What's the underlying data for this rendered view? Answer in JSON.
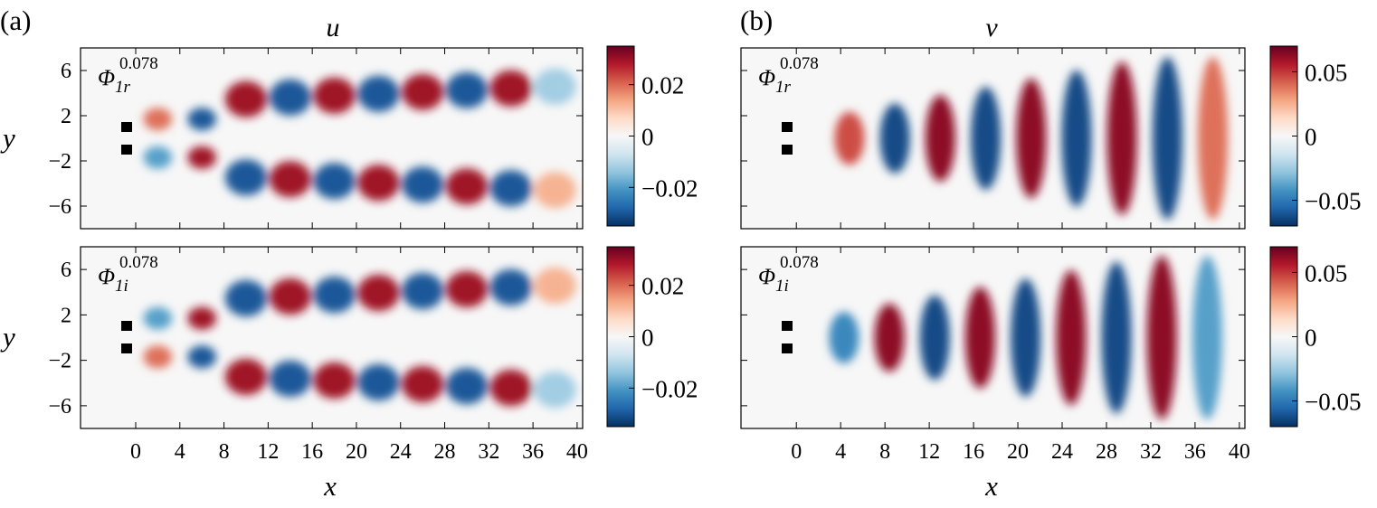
{
  "chart_data": {
    "type": "heatmap",
    "panels": [
      {
        "label": "(a)",
        "title": "u",
        "colorbar": {
          "min": -0.035,
          "max": 0.035,
          "ticks": [
            0.02,
            0,
            -0.02
          ],
          "tick_labels": [
            "0.02",
            "0",
            "−0.02"
          ]
        },
        "rows": [
          {
            "mode_label": "Φ",
            "mode_sub": "1r",
            "mode_sup": "0.078"
          },
          {
            "mode_label": "Φ",
            "mode_sub": "1i",
            "mode_sup": "0.078"
          }
        ]
      },
      {
        "label": "(b)",
        "title": "v",
        "colorbar": {
          "min": -0.07,
          "max": 0.07,
          "ticks": [
            0.05,
            0,
            -0.05
          ],
          "tick_labels": [
            "0.05",
            "0",
            "−0.05"
          ]
        },
        "rows": [
          {
            "mode_label": "Φ",
            "mode_sub": "1r",
            "mode_sup": "0.078"
          },
          {
            "mode_label": "Φ",
            "mode_sub": "1i",
            "mode_sup": "0.078"
          }
        ]
      }
    ],
    "xlabel": "x",
    "ylabel": "y",
    "x_ticks": [
      0,
      4,
      8,
      12,
      16,
      20,
      24,
      28,
      32,
      36,
      40
    ],
    "y_ticks": [
      6,
      2,
      -2,
      -6
    ],
    "xlim": [
      -5,
      40.5
    ],
    "ylim": [
      -8,
      8
    ],
    "cylinders": [
      {
        "x": 0,
        "y": 1
      },
      {
        "x": 0,
        "y": -1
      }
    ],
    "colormap": [
      "#053061",
      "#2166ac",
      "#4393c3",
      "#92c5de",
      "#d1e5f0",
      "#f7f7f7",
      "#fddbc7",
      "#f4a582",
      "#d6604d",
      "#b2182b",
      "#67001f"
    ]
  }
}
